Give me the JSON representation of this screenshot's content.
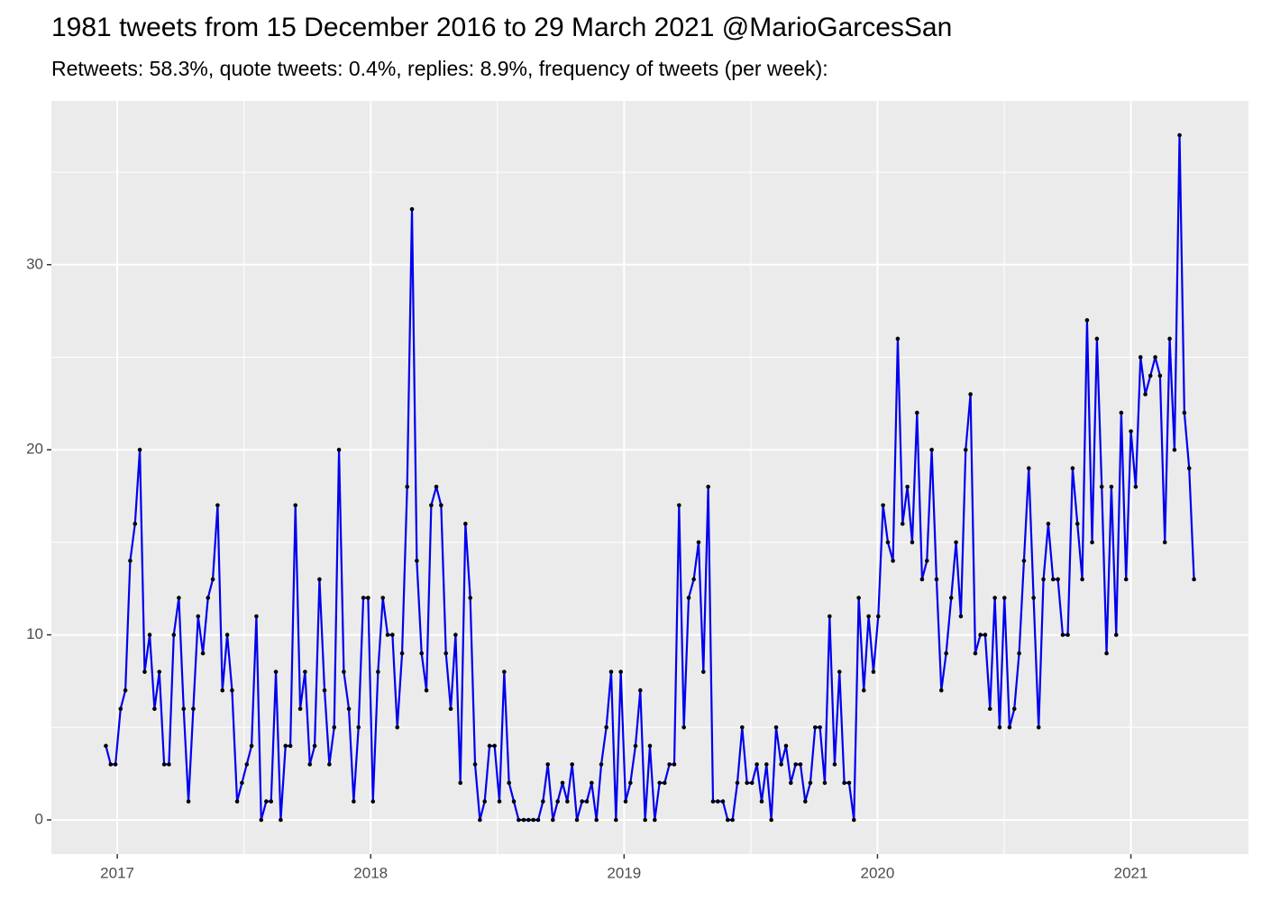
{
  "chart_data": {
    "type": "line",
    "title": "1981 tweets from 15 December 2016 to 29 March 2021 @MarioGarcesSan",
    "subtitle": "Retweets: 58.3%, quote tweets: 0.4%, replies: 8.9%, frequency of tweets (per week):",
    "x": [
      2016.955,
      2016.974,
      2016.993,
      2017.013,
      2017.032,
      2017.051,
      2017.07,
      2017.089,
      2017.108,
      2017.128,
      2017.147,
      2017.166,
      2017.185,
      2017.204,
      2017.223,
      2017.243,
      2017.262,
      2017.281,
      2017.3,
      2017.319,
      2017.338,
      2017.358,
      2017.377,
      2017.396,
      2017.415,
      2017.434,
      2017.453,
      2017.473,
      2017.492,
      2017.511,
      2017.53,
      2017.549,
      2017.568,
      2017.588,
      2017.607,
      2017.626,
      2017.645,
      2017.664,
      2017.683,
      2017.703,
      2017.722,
      2017.741,
      2017.76,
      2017.779,
      2017.798,
      2017.818,
      2017.837,
      2017.856,
      2017.875,
      2017.894,
      2017.914,
      2017.933,
      2017.952,
      2017.971,
      2017.99,
      2018.009,
      2018.029,
      2018.048,
      2018.067,
      2018.086,
      2018.105,
      2018.124,
      2018.144,
      2018.163,
      2018.182,
      2018.201,
      2018.22,
      2018.239,
      2018.259,
      2018.278,
      2018.297,
      2018.316,
      2018.335,
      2018.354,
      2018.374,
      2018.393,
      2018.412,
      2018.431,
      2018.45,
      2018.469,
      2018.489,
      2018.508,
      2018.527,
      2018.546,
      2018.565,
      2018.584,
      2018.604,
      2018.623,
      2018.642,
      2018.661,
      2018.68,
      2018.699,
      2018.719,
      2018.738,
      2018.757,
      2018.776,
      2018.795,
      2018.814,
      2018.834,
      2018.853,
      2018.872,
      2018.891,
      2018.91,
      2018.93,
      2018.949,
      2018.968,
      2018.987,
      2019.006,
      2019.025,
      2019.045,
      2019.064,
      2019.083,
      2019.102,
      2019.121,
      2019.14,
      2019.16,
      2019.179,
      2019.198,
      2019.217,
      2019.236,
      2019.255,
      2019.275,
      2019.294,
      2019.313,
      2019.332,
      2019.351,
      2019.37,
      2019.39,
      2019.409,
      2019.428,
      2019.447,
      2019.466,
      2019.485,
      2019.505,
      2019.524,
      2019.543,
      2019.562,
      2019.581,
      2019.6,
      2019.62,
      2019.639,
      2019.658,
      2019.677,
      2019.696,
      2019.715,
      2019.735,
      2019.754,
      2019.773,
      2019.792,
      2019.811,
      2019.831,
      2019.85,
      2019.869,
      2019.888,
      2019.907,
      2019.926,
      2019.946,
      2019.965,
      2019.984,
      2020.003,
      2020.022,
      2020.041,
      2020.061,
      2020.08,
      2020.099,
      2020.118,
      2020.137,
      2020.156,
      2020.176,
      2020.195,
      2020.214,
      2020.233,
      2020.252,
      2020.271,
      2020.291,
      2020.31,
      2020.329,
      2020.348,
      2020.367,
      2020.386,
      2020.406,
      2020.425,
      2020.444,
      2020.463,
      2020.482,
      2020.501,
      2020.521,
      2020.54,
      2020.559,
      2020.578,
      2020.597,
      2020.616,
      2020.636,
      2020.655,
      2020.674,
      2020.693,
      2020.712,
      2020.731,
      2020.751,
      2020.77,
      2020.789,
      2020.808,
      2020.827,
      2020.847,
      2020.866,
      2020.885,
      2020.904,
      2020.923,
      2020.942,
      2020.962,
      2020.981,
      2021.0,
      2021.019,
      2021.038,
      2021.057,
      2021.077,
      2021.096,
      2021.115,
      2021.134,
      2021.153,
      2021.172,
      2021.192,
      2021.211,
      2021.23,
      2021.249
    ],
    "series": [
      {
        "color": "#0000ee",
        "marker_color": "#000000",
        "values": [
          4,
          3,
          3,
          6,
          7,
          14,
          16,
          20,
          8,
          10,
          6,
          8,
          3,
          3,
          10,
          12,
          6,
          1,
          6,
          11,
          9,
          12,
          13,
          17,
          7,
          10,
          7,
          1,
          2,
          3,
          4,
          11,
          0,
          1,
          1,
          8,
          0,
          4,
          4,
          17,
          6,
          8,
          3,
          4,
          13,
          7,
          3,
          5,
          20,
          8,
          6,
          1,
          5,
          12,
          12,
          1,
          8,
          12,
          10,
          10,
          5,
          9,
          18,
          33,
          14,
          9,
          7,
          17,
          18,
          17,
          9,
          6,
          10,
          2,
          16,
          12,
          3,
          0,
          1,
          4,
          4,
          1,
          8,
          2,
          1,
          0,
          0,
          0,
          0,
          0,
          1,
          3,
          0,
          1,
          2,
          1,
          3,
          0,
          1,
          1,
          2,
          0,
          3,
          5,
          8,
          0,
          8,
          1,
          2,
          4,
          7,
          0,
          4,
          0,
          2,
          2,
          3,
          3,
          17,
          5,
          12,
          13,
          15,
          8,
          18,
          1,
          1,
          1,
          0,
          0,
          2,
          5,
          2,
          2,
          3,
          1,
          3,
          0,
          5,
          3,
          4,
          2,
          3,
          3,
          1,
          2,
          5,
          5,
          2,
          11,
          3,
          8,
          2,
          2,
          0,
          12,
          7,
          11,
          8,
          11,
          17,
          15,
          14,
          26,
          16,
          18,
          15,
          22,
          13,
          14,
          20,
          13,
          7,
          9,
          12,
          15,
          11,
          20,
          23,
          9,
          10,
          10,
          6,
          12,
          5,
          12,
          5,
          6,
          9,
          14,
          19,
          12,
          5,
          13,
          16,
          13,
          13,
          10,
          10,
          19,
          16,
          13,
          27,
          15,
          26,
          18,
          9,
          18,
          10,
          22,
          13,
          21,
          18,
          25,
          23,
          24,
          25,
          24,
          15,
          26,
          20,
          37,
          22,
          19,
          13
        ]
      }
    ],
    "xlim": [
      2016.74,
      2021.464
    ],
    "xticks": [
      2017,
      2018,
      2019,
      2020,
      2021
    ],
    "ylim": [
      -1.85,
      38.85
    ],
    "yticks": [
      0,
      10,
      20,
      30
    ],
    "grid": true
  }
}
